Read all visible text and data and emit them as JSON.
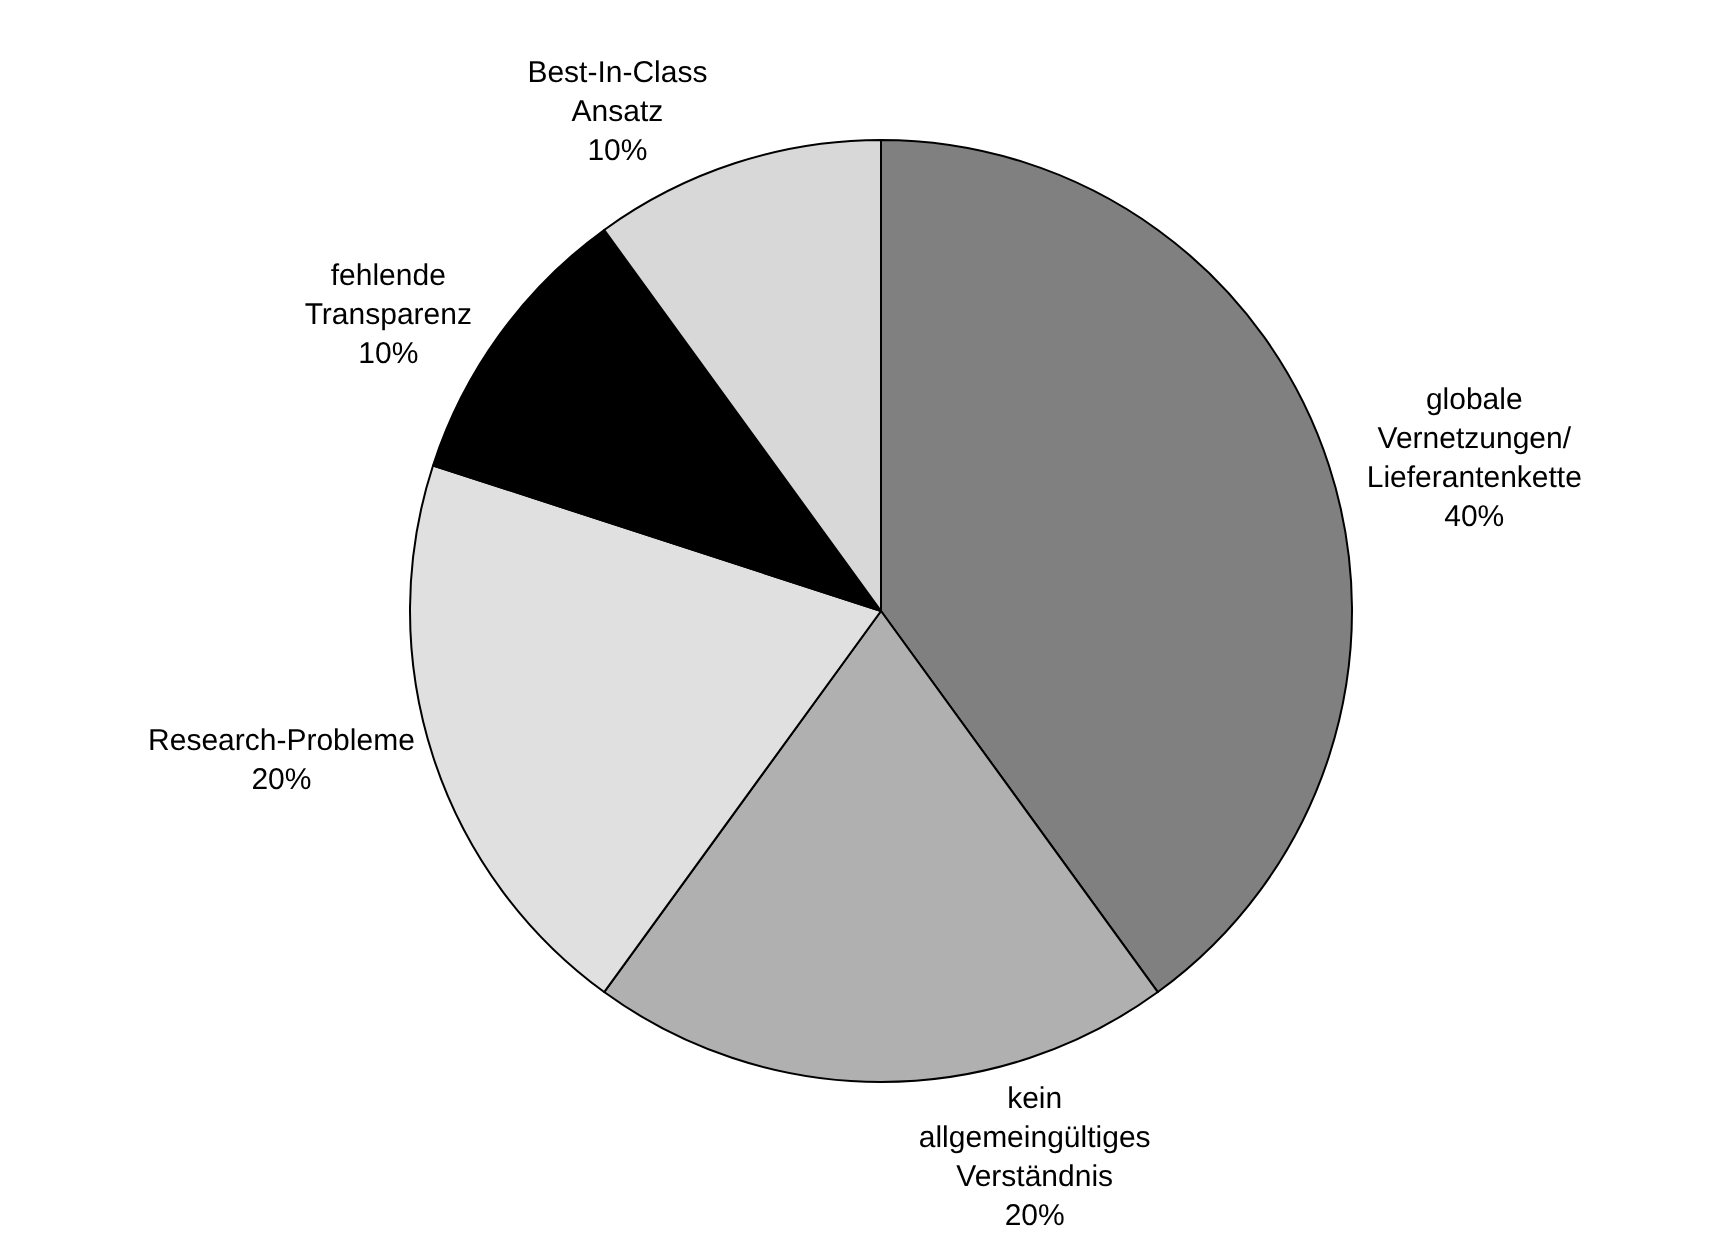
{
  "chart_data": {
    "type": "pie",
    "categories": [
      "globale Vernetzungen/ Lieferantenkette",
      "kein allgemeingültiges Verständnis",
      "Research-Probleme",
      "fehlende Transparenz",
      "Best-In-Class Ansatz"
    ],
    "values": [
      40,
      20,
      20,
      10,
      10
    ],
    "value_labels": [
      "40%",
      "20%",
      "20%",
      "10%",
      "10%"
    ],
    "colors": [
      "#808080",
      "#b0b0b0",
      "#e0e0e0",
      "#000000",
      "#d8d8d8"
    ],
    "legend": false
  }
}
